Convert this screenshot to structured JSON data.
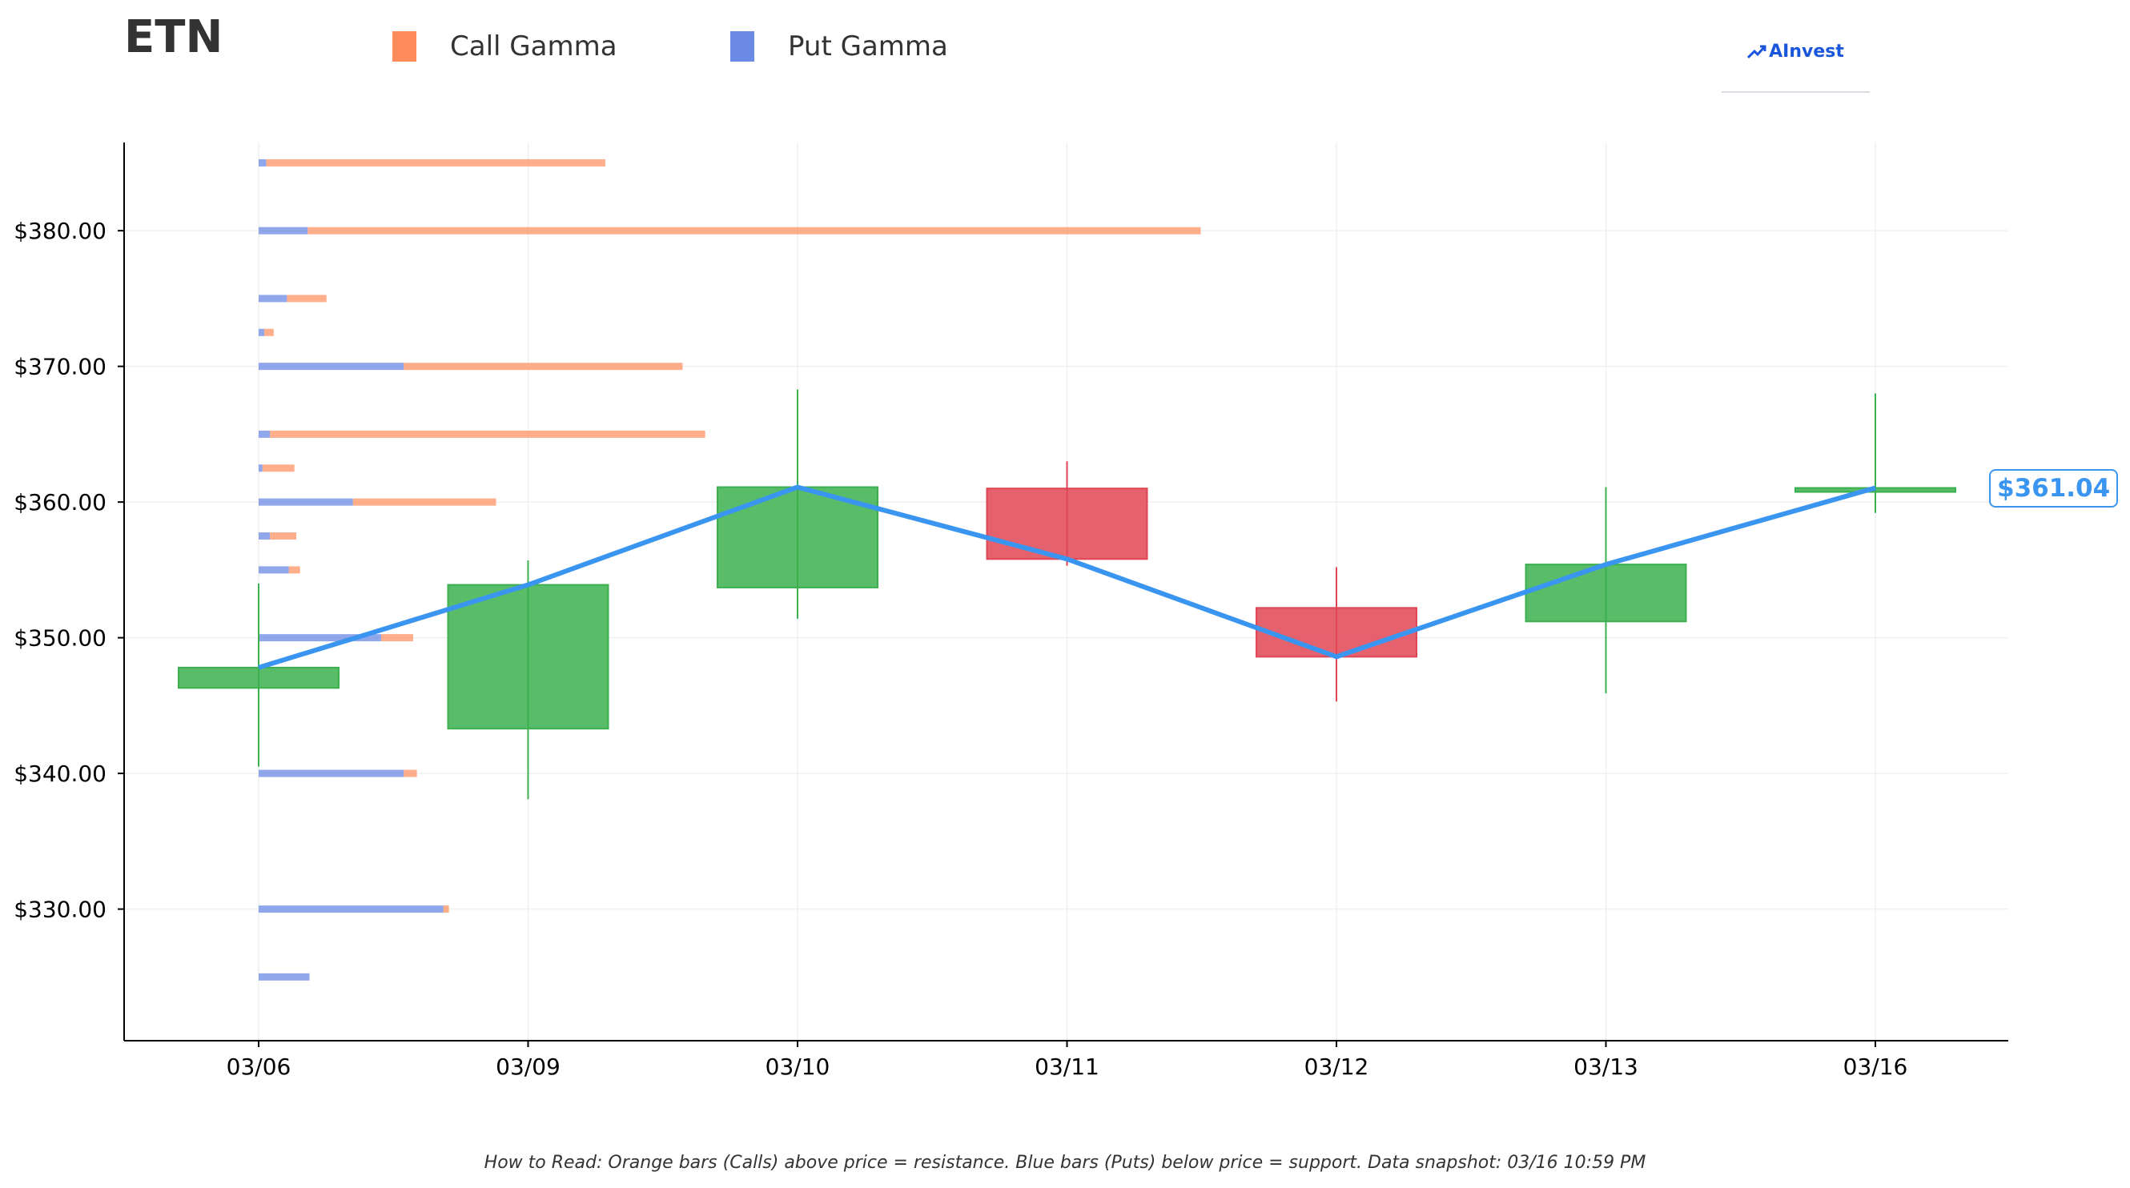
{
  "header": {
    "ticker": "ETN",
    "legend": [
      {
        "label": "Call Gamma",
        "color": "#ff8c5a"
      },
      {
        "label": "Put Gamma",
        "color": "#6b8ae6"
      }
    ],
    "brand": "AInvest"
  },
  "price_badge": "$361.04",
  "footnote": "How to Read: Orange bars (Calls) above price = resistance. Blue bars (Puts) below price = support. Data snapshot: 03/16 10:59 PM",
  "colors": {
    "up": "#3cb04f",
    "down": "#e04555",
    "line": "#3a95f0",
    "call": "#ff8c5a",
    "put": "#6b8ae6"
  },
  "chart_data": {
    "type": "candlestick",
    "categories": [
      "03/06",
      "03/09",
      "03/10",
      "03/11",
      "03/12",
      "03/13",
      "03/16"
    ],
    "ylim": [
      320.3,
      386.5
    ],
    "y_ticks": [
      {
        "value": 330,
        "label": "$330.00"
      },
      {
        "value": 340,
        "label": "$340.00"
      },
      {
        "value": 350,
        "label": "$350.00"
      },
      {
        "value": 360,
        "label": "$360.00"
      },
      {
        "value": 370,
        "label": "$370.00"
      },
      {
        "value": 380,
        "label": "$380.00"
      }
    ],
    "candles": [
      {
        "date": "03/06",
        "open": 346.3,
        "high": 354.0,
        "low": 340.5,
        "close": 347.8
      },
      {
        "date": "03/09",
        "open": 343.3,
        "high": 355.7,
        "low": 338.1,
        "close": 353.9
      },
      {
        "date": "03/10",
        "open": 353.7,
        "high": 368.3,
        "low": 351.4,
        "close": 361.1
      },
      {
        "date": "03/11",
        "open": 361.0,
        "high": 363.0,
        "low": 355.3,
        "close": 355.8
      },
      {
        "date": "03/12",
        "open": 352.2,
        "high": 355.2,
        "low": 345.3,
        "close": 348.6
      },
      {
        "date": "03/13",
        "open": 351.2,
        "high": 361.1,
        "low": 345.9,
        "close": 355.4
      },
      {
        "date": "03/16",
        "open": 360.8,
        "high": 368.0,
        "low": 359.2,
        "close": 361.04
      }
    ],
    "gamma_by_strike": {
      "units": "relative exposure (fraction of plot width)",
      "strikes": [
        325,
        330,
        340,
        350,
        355,
        357.5,
        360,
        362.5,
        365,
        370,
        372.5,
        375,
        380,
        385
      ],
      "put": [
        0.027,
        0.098,
        0.077,
        0.065,
        0.016,
        0.006,
        0.05,
        0.002,
        0.006,
        0.077,
        0.003,
        0.015,
        0.026,
        0.004
      ],
      "call": [
        0.0,
        0.003,
        0.007,
        0.017,
        0.006,
        0.014,
        0.076,
        0.017,
        0.231,
        0.148,
        0.005,
        0.021,
        0.474,
        0.18
      ]
    }
  }
}
